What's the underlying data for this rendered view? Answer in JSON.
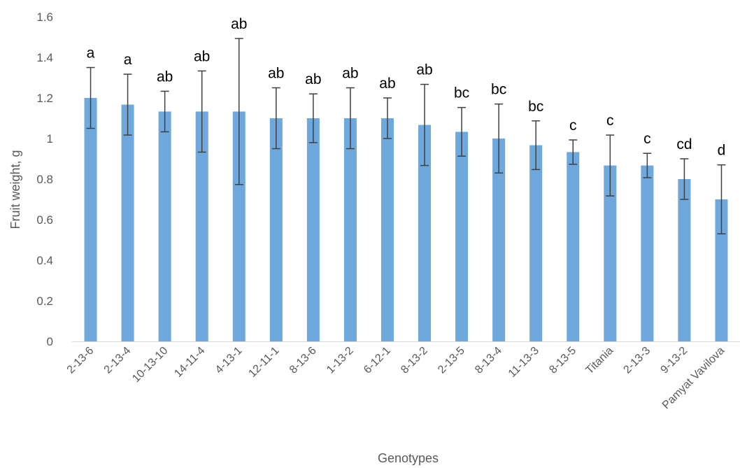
{
  "chart_data": {
    "type": "bar",
    "xlabel": "Genotypes",
    "ylabel": "Fruit weight, g",
    "ylim": [
      0,
      1.6
    ],
    "yticks": [
      0,
      0.2,
      0.4,
      0.6,
      0.8,
      1,
      1.2,
      1.4,
      1.6
    ],
    "ytick_labels": [
      "0",
      "0.2",
      "0.4",
      "0.6",
      "0.8",
      "1",
      "1.2",
      "1.4",
      "1.6"
    ],
    "grid": false,
    "bar_color": "#6fa8dc",
    "error_color": "#404040",
    "categories": [
      "2-13-6",
      "2-13-4",
      "10-13-10",
      "14-11-4",
      "4-13-1",
      "12-11-1",
      "8-13-6",
      "1-13-2",
      "6-12-1",
      "8-13-2",
      "2-13-5",
      "8-13-4",
      "11-13-3",
      "8-13-5",
      "Titania",
      "2-13-3",
      "9-13-2",
      "Pamyat Vavilova"
    ],
    "values": [
      1.2,
      1.167,
      1.133,
      1.133,
      1.133,
      1.1,
      1.1,
      1.1,
      1.1,
      1.067,
      1.033,
      1.0,
      0.967,
      0.933,
      0.867,
      0.867,
      0.8,
      0.7
    ],
    "errors": [
      0.15,
      0.15,
      0.1,
      0.2,
      0.36,
      0.15,
      0.12,
      0.15,
      0.1,
      0.2,
      0.12,
      0.17,
      0.12,
      0.06,
      0.15,
      0.06,
      0.1,
      0.17
    ],
    "labels": [
      "a",
      "a",
      "ab",
      "ab",
      "ab",
      "ab",
      "ab",
      "ab",
      "ab",
      "ab",
      "bc",
      "bc",
      "bc",
      "c",
      "c",
      "c",
      "cd",
      "d"
    ]
  }
}
